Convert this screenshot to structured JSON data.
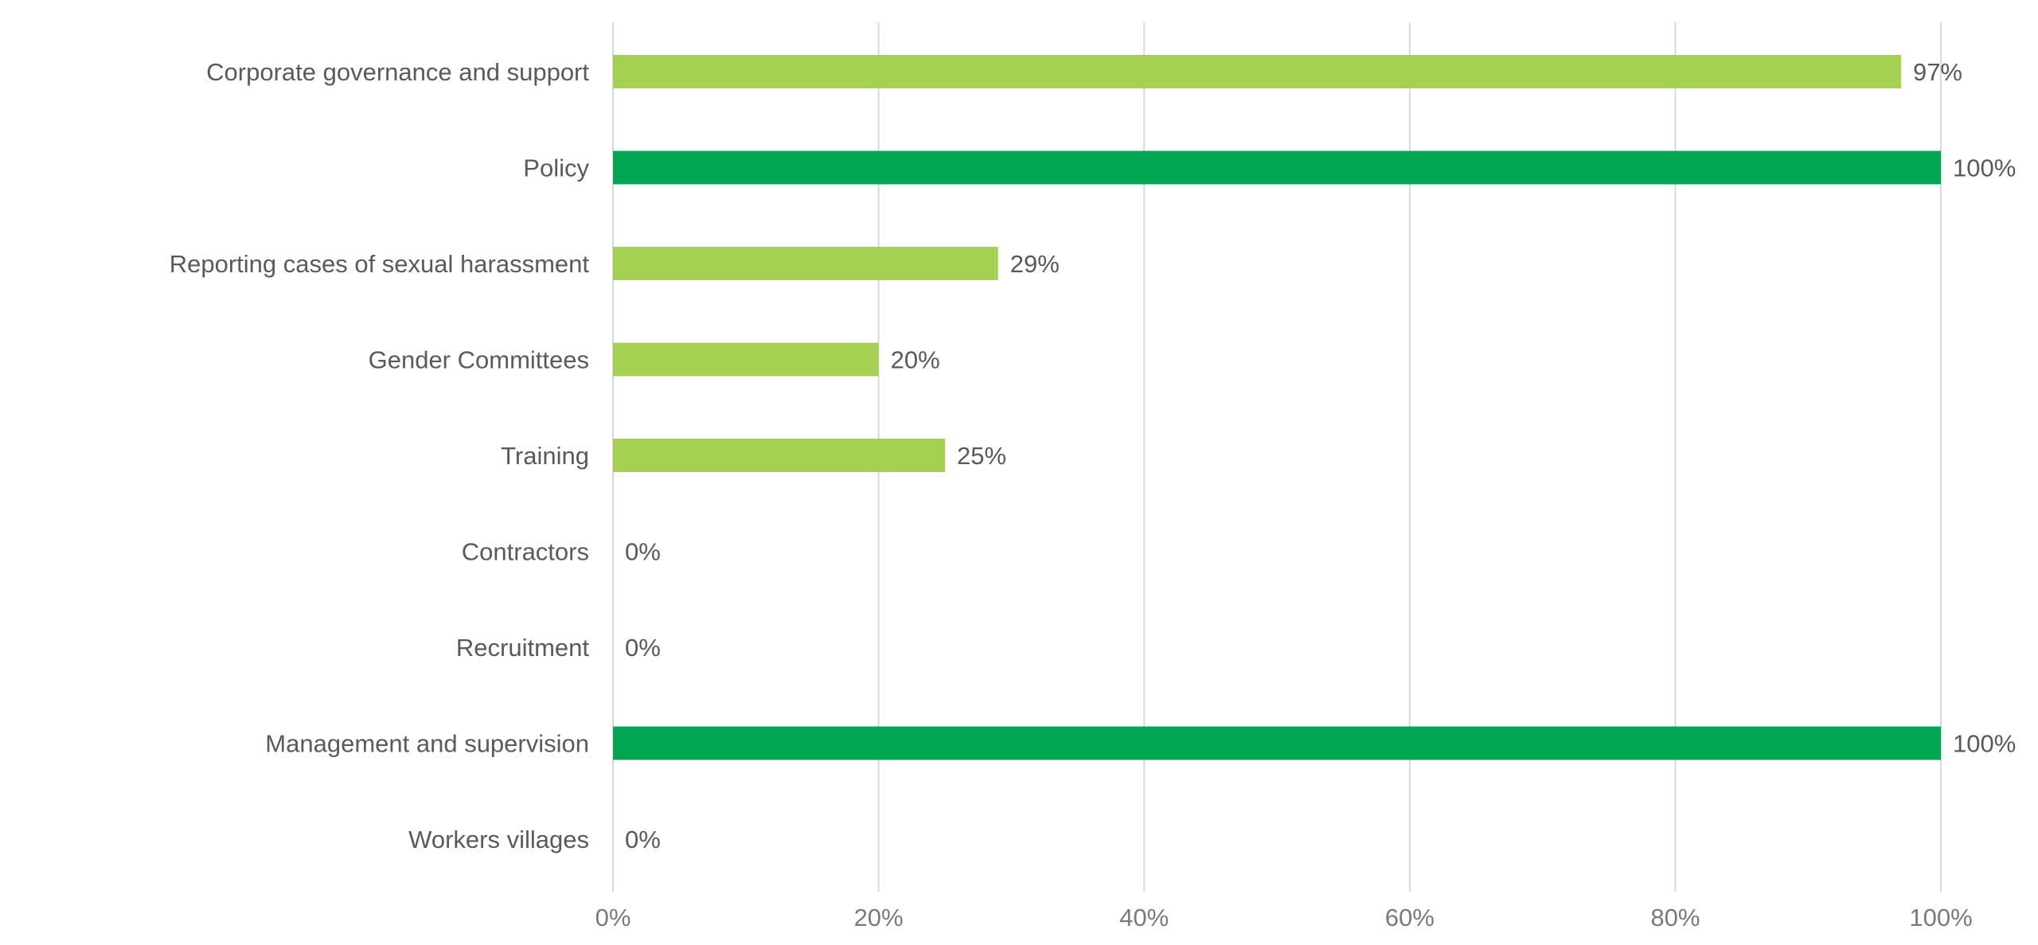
{
  "chart_data": {
    "type": "bar",
    "orientation": "horizontal",
    "title": "",
    "xlabel": "",
    "ylabel": "",
    "xlim": [
      0,
      100
    ],
    "x_ticks": [
      0,
      20,
      40,
      60,
      80,
      100
    ],
    "x_tick_labels": [
      "0%",
      "20%",
      "40%",
      "60%",
      "80%",
      "100%"
    ],
    "grid": "vertical",
    "legend": "none",
    "categories": [
      "Corporate governance and support",
      "Policy",
      "Reporting cases of sexual harassment",
      "Gender Committees",
      "Training",
      "Contractors",
      "Recruitment",
      "Management and supervision",
      "Workers villages"
    ],
    "values": [
      97,
      100,
      29,
      20,
      25,
      0,
      0,
      100,
      0
    ],
    "value_labels": [
      "97%",
      "100%",
      "29%",
      "20%",
      "25%",
      "0%",
      "0%",
      "100%",
      "0%"
    ],
    "bar_colors": [
      "#a5d051",
      "#00a651",
      "#a5d051",
      "#a5d051",
      "#a5d051",
      "#a5d051",
      "#a5d051",
      "#00a651",
      "#a5d051"
    ]
  }
}
